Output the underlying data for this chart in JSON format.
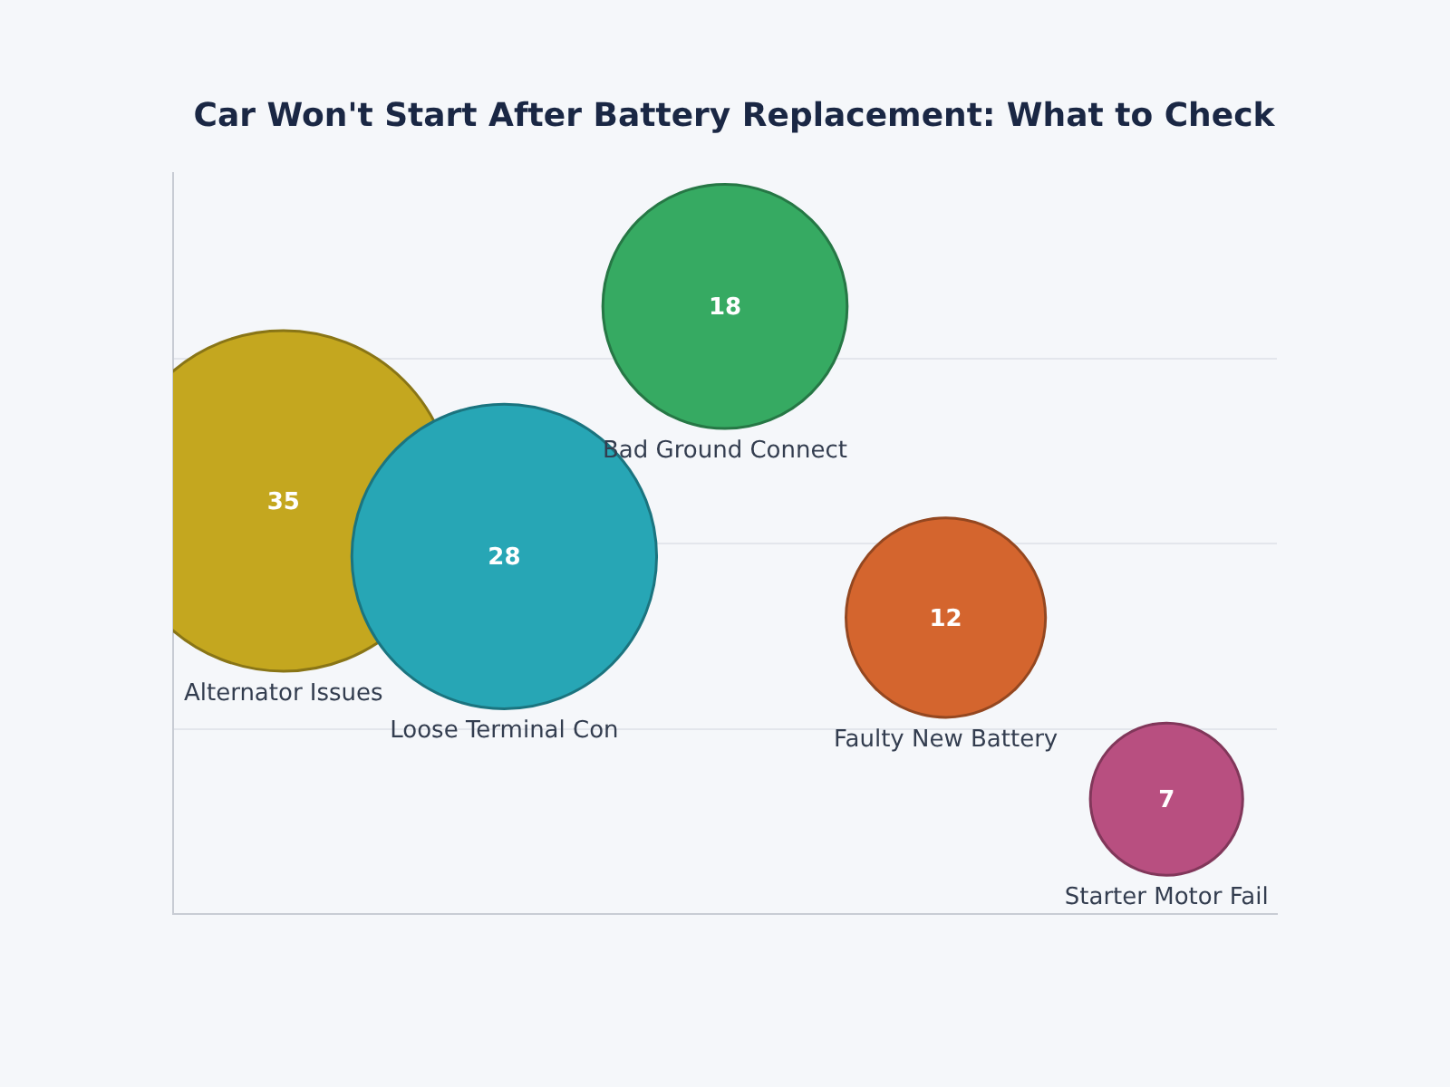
{
  "chart_data": {
    "type": "other",
    "title": "Car Won't Start After Battery Replacement: What to Check",
    "categories": [
      "Alternator Issues",
      "Loose Terminal Con",
      "Bad Ground Connect",
      "Faulty New Battery",
      "Starter Motor Fail"
    ],
    "values": [
      35,
      28,
      18,
      12,
      7
    ],
    "colors": [
      "#c4a71f",
      "#27a6b5",
      "#36aa62",
      "#d4652e",
      "#b84f80"
    ],
    "data_labels": true,
    "legend": false
  }
}
